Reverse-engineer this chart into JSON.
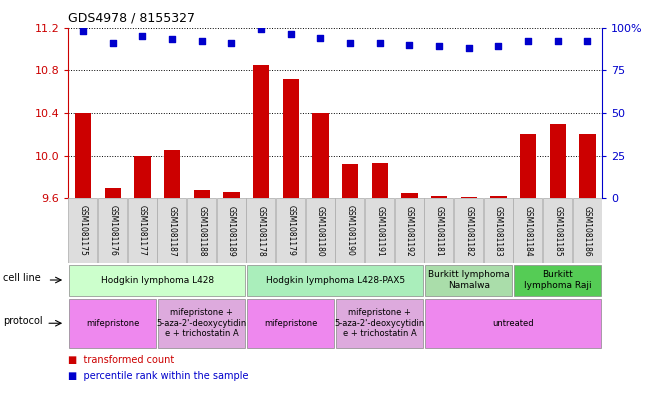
{
  "title": "GDS4978 / 8155327",
  "samples": [
    "GSM1081175",
    "GSM1081176",
    "GSM1081177",
    "GSM1081187",
    "GSM1081188",
    "GSM1081189",
    "GSM1081178",
    "GSM1081179",
    "GSM1081180",
    "GSM1081190",
    "GSM1081191",
    "GSM1081192",
    "GSM1081181",
    "GSM1081182",
    "GSM1081183",
    "GSM1081184",
    "GSM1081185",
    "GSM1081186"
  ],
  "bar_values": [
    10.4,
    9.7,
    10.0,
    10.05,
    9.68,
    9.66,
    10.85,
    10.72,
    10.4,
    9.92,
    9.93,
    9.65,
    9.62,
    9.61,
    9.62,
    10.2,
    10.3,
    10.2
  ],
  "dot_values": [
    98,
    91,
    95,
    93,
    92,
    91,
    99,
    96,
    94,
    91,
    91,
    90,
    89,
    88,
    89,
    92,
    92,
    92
  ],
  "ymin": 9.6,
  "ymax": 11.2,
  "yticks": [
    9.6,
    10.0,
    10.4,
    10.8,
    11.2
  ],
  "right_yticks": [
    0,
    25,
    50,
    75,
    100
  ],
  "bar_color": "#cc0000",
  "dot_color": "#0000cc",
  "cell_line_groups": [
    {
      "label": "Hodgkin lymphoma L428",
      "start": 0,
      "end": 6,
      "color": "#ccffcc"
    },
    {
      "label": "Hodgkin lymphoma L428-PAX5",
      "start": 6,
      "end": 12,
      "color": "#aaeebb"
    },
    {
      "label": "Burkitt lymphoma\nNamalwa",
      "start": 12,
      "end": 15,
      "color": "#aaddaa"
    },
    {
      "label": "Burkitt\nlymphoma Raji",
      "start": 15,
      "end": 18,
      "color": "#55cc55"
    }
  ],
  "protocol_groups": [
    {
      "label": "mifepristone",
      "start": 0,
      "end": 3,
      "color": "#ee88ee"
    },
    {
      "label": "mifepristone +\n5-aza-2'-deoxycytidin\ne + trichostatin A",
      "start": 3,
      "end": 6,
      "color": "#ddaadd"
    },
    {
      "label": "mifepristone",
      "start": 6,
      "end": 9,
      "color": "#ee88ee"
    },
    {
      "label": "mifepristone +\n5-aza-2'-deoxycytidin\ne + trichostatin A",
      "start": 9,
      "end": 12,
      "color": "#ddaadd"
    },
    {
      "label": "untreated",
      "start": 12,
      "end": 18,
      "color": "#ee88ee"
    }
  ],
  "cell_line_row_label": "cell line",
  "protocol_row_label": "protocol",
  "legend_bar_label": "transformed count",
  "legend_dot_label": "percentile rank within the sample",
  "label_bg_color": "#dddddd",
  "background_color": "#ffffff"
}
